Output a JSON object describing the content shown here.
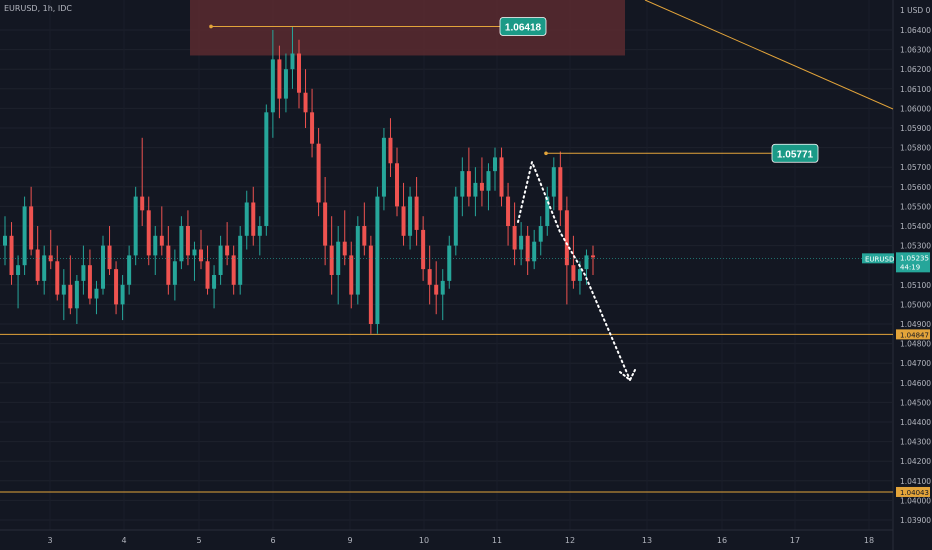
{
  "header": {
    "symbol_line": "EURUSD, 1h, IDC",
    "unit": "USD"
  },
  "colors": {
    "background": "#131722",
    "up": "#26a69a",
    "down": "#ef5350",
    "level": "#e3a43a",
    "zone": "#5b2a2f",
    "callout": "#1b9a87"
  },
  "chart_data": {
    "type": "candlestick",
    "x_ticks": [
      "3",
      "4",
      "5",
      "6",
      "9",
      "10",
      "11",
      "12",
      "13",
      "16",
      "17",
      "18"
    ],
    "y_ticks": [
      "1.06400",
      "1.06300",
      "1.06200",
      "1.06100",
      "1.06000",
      "1.05900",
      "1.05800",
      "1.05700",
      "1.05600",
      "1.05500",
      "1.05400",
      "1.05300",
      "1.05100",
      "1.05000",
      "1.04900",
      "1.04800",
      "1.04700",
      "1.04600",
      "1.04500",
      "1.04400",
      "1.04300",
      "1.04200",
      "1.04100",
      "1.04000",
      "1.03900"
    ],
    "ylim": [
      1.0385,
      1.0653
    ],
    "axis_tags": [
      {
        "text": "1 USD 0",
        "value": null
      },
      {
        "text": "1.04847",
        "value": 1.04847
      },
      {
        "text": "1.04043",
        "value": 1.04043
      }
    ],
    "levels": [
      1.04847,
      1.04043
    ],
    "callouts": [
      {
        "text": "1.06418",
        "value": 1.06418
      },
      {
        "text": "1.05771",
        "value": 1.05771
      }
    ],
    "current_price": {
      "symbol": "EURUSD",
      "price": "1.05235",
      "countdown": "44:19",
      "value": 1.05235
    },
    "supply_zone": {
      "low": 1.0627,
      "high": 1.0656
    },
    "candles": [
      [
        1.053,
        1.0545,
        1.052,
        1.0535
      ],
      [
        1.0535,
        1.0542,
        1.051,
        1.0515
      ],
      [
        1.0515,
        1.0525,
        1.0498,
        1.052
      ],
      [
        1.052,
        1.0555,
        1.0515,
        1.055
      ],
      [
        1.055,
        1.056,
        1.0525,
        1.0528
      ],
      [
        1.0528,
        1.054,
        1.051,
        1.0512
      ],
      [
        1.0512,
        1.053,
        1.0505,
        1.0525
      ],
      [
        1.0525,
        1.0538,
        1.0518,
        1.0522
      ],
      [
        1.0522,
        1.053,
        1.0502,
        1.0505
      ],
      [
        1.0505,
        1.0518,
        1.0492,
        1.051
      ],
      [
        1.051,
        1.0525,
        1.0495,
        1.0498
      ],
      [
        1.0498,
        1.0515,
        1.049,
        1.0512
      ],
      [
        1.0512,
        1.053,
        1.0505,
        1.052
      ],
      [
        1.052,
        1.0528,
        1.05,
        1.0503
      ],
      [
        1.0503,
        1.0512,
        1.0495,
        1.0508
      ],
      [
        1.0508,
        1.0535,
        1.0505,
        1.053
      ],
      [
        1.053,
        1.054,
        1.0515,
        1.0518
      ],
      [
        1.0518,
        1.0522,
        1.0495,
        1.05
      ],
      [
        1.05,
        1.0515,
        1.0492,
        1.051
      ],
      [
        1.051,
        1.053,
        1.0505,
        1.0525
      ],
      [
        1.0525,
        1.056,
        1.052,
        1.0555
      ],
      [
        1.0555,
        1.0585,
        1.054,
        1.0548
      ],
      [
        1.0548,
        1.0555,
        1.052,
        1.0525
      ],
      [
        1.0525,
        1.054,
        1.0515,
        1.0535
      ],
      [
        1.0535,
        1.055,
        1.0525,
        1.053
      ],
      [
        1.053,
        1.054,
        1.0505,
        1.051
      ],
      [
        1.051,
        1.0528,
        1.0502,
        1.0522
      ],
      [
        1.0522,
        1.0545,
        1.0518,
        1.054
      ],
      [
        1.054,
        1.0548,
        1.052,
        1.0525
      ],
      [
        1.0525,
        1.0532,
        1.0512,
        1.0528
      ],
      [
        1.0528,
        1.0538,
        1.0518,
        1.0522
      ],
      [
        1.0522,
        1.053,
        1.0505,
        1.0508
      ],
      [
        1.0508,
        1.052,
        1.0498,
        1.0515
      ],
      [
        1.0515,
        1.0535,
        1.051,
        1.053
      ],
      [
        1.053,
        1.0542,
        1.052,
        1.0525
      ],
      [
        1.0525,
        1.053,
        1.0505,
        1.051
      ],
      [
        1.051,
        1.054,
        1.0505,
        1.0535
      ],
      [
        1.0535,
        1.0558,
        1.0528,
        1.0552
      ],
      [
        1.0552,
        1.056,
        1.053,
        1.0535
      ],
      [
        1.0535,
        1.0545,
        1.0525,
        1.054
      ],
      [
        1.054,
        1.0602,
        1.0535,
        1.0598
      ],
      [
        1.0598,
        1.064,
        1.0585,
        1.0625
      ],
      [
        1.0625,
        1.0632,
        1.0595,
        1.0605
      ],
      [
        1.0605,
        1.0628,
        1.0598,
        1.062
      ],
      [
        1.062,
        1.0642,
        1.061,
        1.0628
      ],
      [
        1.0628,
        1.0635,
        1.06,
        1.0608
      ],
      [
        1.0608,
        1.062,
        1.059,
        1.0598
      ],
      [
        1.0598,
        1.061,
        1.0575,
        1.0582
      ],
      [
        1.0582,
        1.059,
        1.0545,
        1.0552
      ],
      [
        1.0552,
        1.0565,
        1.052,
        1.053
      ],
      [
        1.053,
        1.0545,
        1.0505,
        1.0515
      ],
      [
        1.0515,
        1.054,
        1.05,
        1.0532
      ],
      [
        1.0532,
        1.0548,
        1.052,
        1.0525
      ],
      [
        1.0525,
        1.0532,
        1.0498,
        1.0505
      ],
      [
        1.0505,
        1.0545,
        1.05,
        1.054
      ],
      [
        1.054,
        1.0552,
        1.0525,
        1.053
      ],
      [
        1.053,
        1.0535,
        1.0485,
        1.049
      ],
      [
        1.049,
        1.056,
        1.0485,
        1.0555
      ],
      [
        1.0555,
        1.059,
        1.0548,
        1.0585
      ],
      [
        1.0585,
        1.0595,
        1.0565,
        1.0572
      ],
      [
        1.0572,
        1.058,
        1.0545,
        1.055
      ],
      [
        1.055,
        1.0562,
        1.053,
        1.0535
      ],
      [
        1.0535,
        1.056,
        1.0528,
        1.0555
      ],
      [
        1.0555,
        1.0565,
        1.053,
        1.0538
      ],
      [
        1.0538,
        1.0545,
        1.0512,
        1.0518
      ],
      [
        1.0518,
        1.053,
        1.05,
        1.051
      ],
      [
        1.051,
        1.0522,
        1.0495,
        1.0505
      ],
      [
        1.0505,
        1.0518,
        1.0492,
        1.0512
      ],
      [
        1.0512,
        1.0535,
        1.0508,
        1.053
      ],
      [
        1.053,
        1.056,
        1.0525,
        1.0555
      ],
      [
        1.0555,
        1.0575,
        1.0545,
        1.0568
      ],
      [
        1.0568,
        1.058,
        1.055,
        1.0555
      ],
      [
        1.0555,
        1.057,
        1.0545,
        1.0562
      ],
      [
        1.0562,
        1.0575,
        1.055,
        1.0558
      ],
      [
        1.0558,
        1.0572,
        1.0548,
        1.0568
      ],
      [
        1.0568,
        1.058,
        1.0558,
        1.0575
      ],
      [
        1.0575,
        1.058,
        1.055,
        1.0555
      ],
      [
        1.0555,
        1.0562,
        1.053,
        1.054
      ],
      [
        1.054,
        1.0552,
        1.052,
        1.0528
      ],
      [
        1.0528,
        1.0542,
        1.052,
        1.0535
      ],
      [
        1.0535,
        1.054,
        1.0515,
        1.0522
      ],
      [
        1.0522,
        1.0538,
        1.0518,
        1.0532
      ],
      [
        1.0532,
        1.0545,
        1.0525,
        1.054
      ],
      [
        1.054,
        1.056,
        1.0535,
        1.0555
      ],
      [
        1.0555,
        1.0575,
        1.0548,
        1.057
      ],
      [
        1.057,
        1.0578,
        1.054,
        1.0548
      ],
      [
        1.0548,
        1.0555,
        1.05,
        1.052
      ],
      [
        1.052,
        1.0535,
        1.0508,
        1.0512
      ],
      [
        1.0512,
        1.0522,
        1.0505,
        1.0518
      ],
      [
        1.0518,
        1.0528,
        1.051,
        1.0525
      ],
      [
        1.0525,
        1.053,
        1.0515,
        1.0524
      ]
    ]
  }
}
